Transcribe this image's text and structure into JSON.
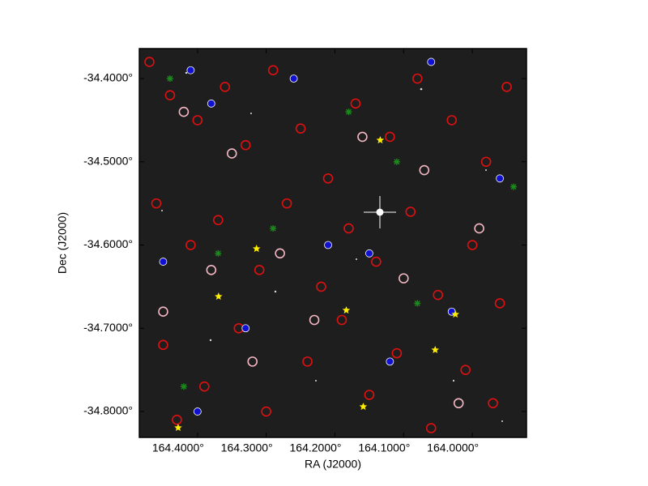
{
  "chart_data": {
    "type": "scatter",
    "x_label": "RA (J2000)",
    "y_label": "Dec (J2000)",
    "xlim": [
      164.4847,
      163.9212
    ],
    "ylim": [
      -34.8311,
      -34.364
    ],
    "xticks": [
      {
        "value": 164.4,
        "label": "164.4000°"
      },
      {
        "value": 164.3,
        "label": "164.3000°"
      },
      {
        "value": 164.2,
        "label": "164.2000°"
      },
      {
        "value": 164.1,
        "label": "164.1000°"
      },
      {
        "value": 164.0,
        "label": "164.0000°"
      }
    ],
    "yticks": [
      {
        "value": -34.4,
        "label": "-34.4000°"
      },
      {
        "value": -34.5,
        "label": "-34.5000°"
      },
      {
        "value": -34.6,
        "label": "-34.6000°"
      },
      {
        "value": -34.7,
        "label": "-34.7000°"
      },
      {
        "value": -34.8,
        "label": "-34.8000°"
      }
    ],
    "series": [
      {
        "color": "#e01010",
        "marker": "ring",
        "x": [
          164.47,
          164.44,
          164.4,
          164.36,
          164.33,
          164.29,
          164.25,
          164.21,
          164.17,
          164.12,
          164.08,
          164.03,
          163.98,
          163.95,
          164.46,
          164.41,
          164.37,
          164.31,
          164.27,
          164.22,
          164.18,
          164.14,
          164.09,
          164.05,
          164.0,
          163.96,
          164.45,
          164.39,
          164.34,
          164.3,
          164.24,
          164.19,
          164.15,
          164.11,
          164.06,
          164.01,
          163.97,
          164.43
        ],
        "y": [
          -34.38,
          -34.42,
          -34.45,
          -34.41,
          -34.48,
          -34.39,
          -34.46,
          -34.52,
          -34.43,
          -34.47,
          -34.4,
          -34.45,
          -34.5,
          -34.41,
          -34.55,
          -34.6,
          -34.57,
          -34.63,
          -34.55,
          -34.65,
          -34.58,
          -34.62,
          -34.56,
          -34.66,
          -34.6,
          -34.67,
          -34.72,
          -34.77,
          -34.7,
          -34.8,
          -34.74,
          -34.69,
          -34.78,
          -34.73,
          -34.82,
          -34.75,
          -34.79,
          -34.81
        ]
      },
      {
        "color": "#f4b8c4",
        "marker": "ring",
        "x": [
          164.42,
          164.35,
          164.28,
          164.16,
          164.07,
          163.99,
          164.45,
          164.32,
          164.23,
          164.1,
          164.02,
          164.38
        ],
        "y": [
          -34.44,
          -34.49,
          -34.61,
          -34.47,
          -34.51,
          -34.58,
          -34.68,
          -34.74,
          -34.69,
          -34.64,
          -34.79,
          -34.63
        ]
      },
      {
        "color": "#1010d0",
        "marker": "dot",
        "x": [
          164.41,
          164.38,
          164.26,
          164.15,
          164.06,
          163.96,
          164.45,
          164.33,
          164.21,
          164.12,
          164.03,
          164.4
        ],
        "y": [
          -34.39,
          -34.43,
          -34.4,
          -34.61,
          -34.38,
          -34.52,
          -34.62,
          -34.7,
          -34.6,
          -34.74,
          -34.68,
          -34.8
        ]
      },
      {
        "color": "#1a8a1a",
        "marker": "cross",
        "x": [
          164.44,
          164.29,
          164.18,
          164.11,
          163.94,
          164.37,
          164.08,
          164.42
        ],
        "y": [
          -34.4,
          -34.58,
          -34.44,
          -34.5,
          -34.53,
          -34.61,
          -34.67,
          -34.77
        ]
      },
      {
        "color": "#ffee00",
        "marker": "star",
        "x": [
          164.1341,
          164.3141,
          164.3694,
          164.1835,
          164.0247,
          164.0541,
          164.1588,
          164.4282
        ],
        "y": [
          -34.474,
          -34.6044,
          -34.6618,
          -34.6784,
          -34.6832,
          -34.726,
          -34.7942,
          -34.8195
        ]
      }
    ]
  }
}
